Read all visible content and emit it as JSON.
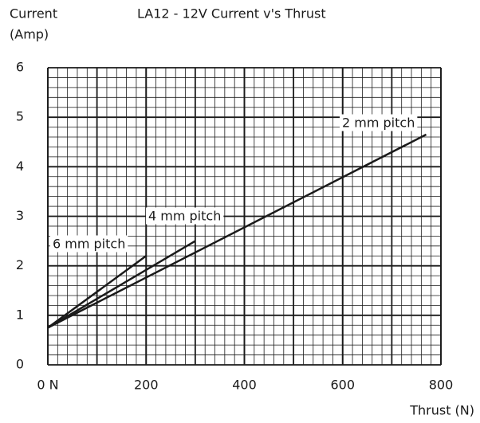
{
  "chart_data": {
    "type": "line",
    "title": "LA12 - 12V Current v's Thrust",
    "y_label": [
      "Current",
      "(Amp)"
    ],
    "x_label": "Thrust (N)",
    "series": [
      {
        "name": "2 mm pitch",
        "color": "#1a1a1a",
        "x": [
          0,
          770
        ],
        "values": [
          0.75,
          4.65
        ]
      },
      {
        "name": "4 mm pitch",
        "color": "#1a1a1a",
        "x": [
          0,
          300
        ],
        "values": [
          0.75,
          2.5
        ]
      },
      {
        "name": "6 mm pitch",
        "color": "#1a1a1a",
        "x": [
          0,
          200
        ],
        "values": [
          0.75,
          2.2
        ]
      }
    ],
    "xlim": [
      0,
      800
    ],
    "xticks": [
      {
        "value": 0,
        "label": "0 N"
      },
      200,
      400,
      600,
      800
    ],
    "ylim": [
      0,
      6
    ],
    "yticks": [
      0,
      1,
      2,
      3,
      4,
      5,
      6
    ],
    "grid": true
  }
}
